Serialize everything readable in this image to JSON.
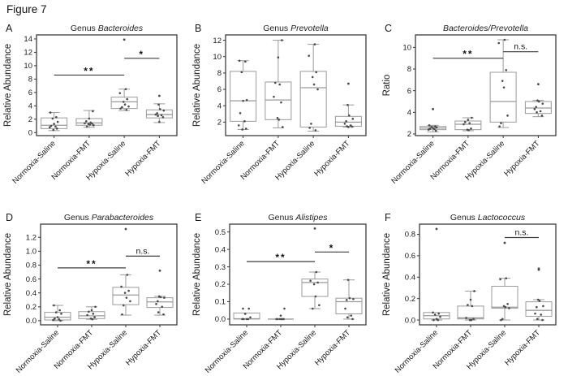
{
  "figure_title": "Figure 7",
  "style": {
    "panel_border_color": "#3d3d3d",
    "box_stroke_color": "#9b9b9b",
    "point_color": "#4a4a4a",
    "sig_color": "#3d3d3d",
    "text_color": "#1a1a1a"
  },
  "categories": [
    "Normoxia-Saline",
    "Normoxia-FMT",
    "Hypoxia-Saline",
    "Hypoxia-FMT"
  ],
  "chart_data": [
    {
      "type": "boxplot",
      "panel_label": "A",
      "title": {
        "prefix": "Genus ",
        "italic": "Bacteroides"
      },
      "ylabel": "Relative Abundance",
      "ylim": [
        -0.45,
        14.6
      ],
      "yticks": [
        0,
        2,
        4,
        6,
        8,
        10,
        12,
        14
      ],
      "ytick_labels": [
        "0",
        "2",
        "4",
        "6",
        "8",
        "10",
        "12",
        "14"
      ],
      "grid": false,
      "legend": "none",
      "boxes": [
        {
          "category": "Normoxia-Saline",
          "whisker_low": 0.3,
          "q1": 0.6,
          "median": 1.1,
          "q3": 2.2,
          "whisker_high": 3.0,
          "outliers": [],
          "points": [
            3.0,
            2.3,
            2.1,
            1.6,
            1.3,
            1.0,
            0.9,
            0.8,
            0.6,
            0.4
          ]
        },
        {
          "category": "Normoxia-FMT",
          "whisker_low": 0.8,
          "q1": 1.1,
          "median": 1.45,
          "q3": 2.1,
          "whisker_high": 3.3,
          "outliers": [],
          "points": [
            3.2,
            2.1,
            1.7,
            1.5,
            1.4,
            1.35,
            1.3,
            1.2,
            1.1,
            0.9
          ]
        },
        {
          "category": "Hypoxia-Saline",
          "whisker_low": 3.3,
          "q1": 3.6,
          "median": 4.6,
          "q3": 5.3,
          "whisker_high": 6.5,
          "outliers": [
            13.9
          ],
          "points": [
            6.5,
            5.9,
            5.0,
            4.6,
            4.2,
            3.9,
            3.8,
            3.6,
            3.4
          ]
        },
        {
          "category": "Hypoxia-FMT",
          "whisker_low": 1.5,
          "q1": 2.2,
          "median": 2.7,
          "q3": 3.4,
          "whisker_high": 4.3,
          "outliers": [
            5.5
          ],
          "points": [
            4.2,
            3.5,
            3.3,
            2.9,
            2.7,
            2.6,
            2.5,
            2.3,
            1.6
          ]
        }
      ],
      "significance": [
        {
          "from": 0,
          "to": 2,
          "y": 8.6,
          "label": "**"
        },
        {
          "from": 2,
          "to": 3,
          "y": 11.1,
          "label": "*"
        }
      ]
    },
    {
      "type": "boxplot",
      "panel_label": "B",
      "title": {
        "prefix": "Genus ",
        "italic": "Prevotella"
      },
      "ylabel": "Relative Abundance",
      "ylim": [
        0.35,
        12.65
      ],
      "yticks": [
        2,
        4,
        6,
        8,
        10,
        12
      ],
      "ytick_labels": [
        "2",
        "4",
        "6",
        "8",
        "10",
        "12"
      ],
      "grid": false,
      "legend": "none",
      "boxes": [
        {
          "category": "Normoxia-Saline",
          "whisker_low": 1.1,
          "q1": 2.1,
          "median": 4.6,
          "q3": 8.2,
          "whisker_high": 9.5,
          "outliers": [],
          "points": [
            9.5,
            9.4,
            8.1,
            4.7,
            4.6,
            3.1,
            2.1,
            1.6,
            1.2,
            1.1
          ]
        },
        {
          "category": "Normoxia-FMT",
          "whisker_low": 1.3,
          "q1": 2.3,
          "median": 4.7,
          "q3": 6.9,
          "whisker_high": 12.0,
          "outliers": [],
          "points": [
            12.0,
            9.9,
            6.8,
            6.6,
            5.1,
            4.4,
            2.5,
            2.3,
            1.4
          ]
        },
        {
          "category": "Hypoxia-Saline",
          "whisker_low": 0.9,
          "q1": 1.4,
          "median": 6.2,
          "q3": 8.2,
          "whisker_high": 11.5,
          "outliers": [],
          "points": [
            11.5,
            10.1,
            8.1,
            7.5,
            6.6,
            6.0,
            1.8,
            1.3,
            1.0
          ]
        },
        {
          "category": "Hypoxia-FMT",
          "whisker_low": 1.4,
          "q1": 1.5,
          "median": 2.0,
          "q3": 2.7,
          "whisker_high": 4.1,
          "outliers": [
            6.7
          ],
          "points": [
            4.1,
            2.8,
            2.4,
            2.1,
            1.8,
            1.6,
            1.5,
            1.45,
            1.4
          ]
        }
      ],
      "significance": []
    },
    {
      "type": "boxplot",
      "panel_label": "C",
      "title": {
        "prefix": "",
        "italic": "Bacteroides/Prevotella"
      },
      "ylabel": "Ratio",
      "ylim": [
        1.85,
        11.15
      ],
      "yticks": [
        2,
        4,
        6,
        8,
        10
      ],
      "ytick_labels": [
        "2",
        "4",
        "6",
        "8",
        "10"
      ],
      "grid": false,
      "legend": "none",
      "boxes": [
        {
          "category": "Normoxia-Saline",
          "whisker_low": 2.2,
          "q1": 2.4,
          "median": 2.55,
          "q3": 2.7,
          "whisker_high": 2.8,
          "outliers": [
            4.3
          ],
          "points": [
            2.8,
            2.7,
            2.65,
            2.6,
            2.55,
            2.5,
            2.45,
            2.4,
            2.3
          ]
        },
        {
          "category": "Normoxia-FMT",
          "whisker_low": 2.3,
          "q1": 2.4,
          "median": 2.9,
          "q3": 3.2,
          "whisker_high": 3.5,
          "outliers": [],
          "points": [
            3.5,
            3.3,
            3.1,
            3.0,
            2.9,
            2.5,
            2.4,
            2.35
          ]
        },
        {
          "category": "Hypoxia-Saline",
          "whisker_low": 2.6,
          "q1": 3.1,
          "median": 5.0,
          "q3": 7.7,
          "whisker_high": 10.7,
          "outliers": [],
          "points": [
            10.7,
            10.4,
            7.9,
            6.9,
            6.3,
            3.7,
            3.0,
            2.7
          ]
        },
        {
          "category": "Hypoxia-FMT",
          "whisker_low": 3.6,
          "q1": 3.9,
          "median": 4.4,
          "q3": 5.0,
          "whisker_high": 5.1,
          "outliers": [
            6.6
          ],
          "points": [
            5.1,
            5.0,
            4.8,
            4.5,
            4.3,
            4.1,
            4.0,
            3.7
          ]
        }
      ],
      "significance": [
        {
          "from": 0,
          "to": 2,
          "y": 9.0,
          "label": "**"
        },
        {
          "from": 2,
          "to": 3,
          "y": 9.6,
          "label": "n.s."
        }
      ]
    },
    {
      "type": "boxplot",
      "panel_label": "D",
      "title": {
        "prefix": "Genus ",
        "italic": "Parabacteroides"
      },
      "ylabel": "Relative Abundance",
      "ylim": [
        -0.06,
        1.39
      ],
      "yticks": [
        0.0,
        0.2,
        0.4,
        0.6,
        0.8,
        1.0,
        1.2
      ],
      "ytick_labels": [
        "0.0",
        "0.2",
        "0.4",
        "0.6",
        "0.8",
        "1.0",
        "1.2"
      ],
      "grid": false,
      "legend": "none",
      "boxes": [
        {
          "category": "Normoxia-Saline",
          "whisker_low": 0.0,
          "q1": 0.01,
          "median": 0.05,
          "q3": 0.12,
          "whisker_high": 0.22,
          "outliers": [],
          "points": [
            0.22,
            0.15,
            0.12,
            0.1,
            0.05,
            0.03,
            0.02,
            0.01,
            0.0
          ]
        },
        {
          "category": "Normoxia-FMT",
          "whisker_low": 0.02,
          "q1": 0.03,
          "median": 0.07,
          "q3": 0.13,
          "whisker_high": 0.2,
          "outliers": [],
          "points": [
            0.2,
            0.15,
            0.13,
            0.1,
            0.08,
            0.05,
            0.03,
            0.02
          ]
        },
        {
          "category": "Hypoxia-Saline",
          "whisker_low": 0.08,
          "q1": 0.23,
          "median": 0.37,
          "q3": 0.48,
          "whisker_high": 0.66,
          "outliers": [
            1.32
          ],
          "points": [
            0.66,
            0.49,
            0.43,
            0.4,
            0.33,
            0.28,
            0.22,
            0.09
          ]
        },
        {
          "category": "Hypoxia-FMT",
          "whisker_low": 0.08,
          "q1": 0.19,
          "median": 0.27,
          "q3": 0.33,
          "whisker_high": 0.35,
          "outliers": [
            0.72
          ],
          "points": [
            0.35,
            0.34,
            0.33,
            0.28,
            0.24,
            0.2,
            0.12,
            0.09
          ]
        }
      ],
      "significance": [
        {
          "from": 0,
          "to": 2,
          "y": 0.76,
          "label": "**"
        },
        {
          "from": 2,
          "to": 3,
          "y": 0.93,
          "label": "n.s."
        }
      ]
    },
    {
      "type": "boxplot",
      "panel_label": "E",
      "title": {
        "prefix": "Genus ",
        "italic": "Alistipes"
      },
      "ylabel": "Relative Abundance",
      "ylim": [
        -0.033,
        0.545
      ],
      "yticks": [
        0.0,
        0.1,
        0.2,
        0.3,
        0.4,
        0.5
      ],
      "ytick_labels": [
        "0.0",
        "0.1",
        "0.2",
        "0.3",
        "0.4",
        "0.5"
      ],
      "grid": false,
      "legend": "none",
      "boxes": [
        {
          "category": "Normoxia-Saline",
          "whisker_low": 0.0,
          "q1": 0.0,
          "median": 0.002,
          "q3": 0.035,
          "whisker_high": 0.035,
          "outliers": [],
          "points": [
            0.06,
            0.06,
            0.03,
            0.01,
            0.0,
            0.0,
            0.0,
            0.0
          ]
        },
        {
          "category": "Normoxia-FMT",
          "whisker_low": 0.0,
          "q1": 0.0,
          "median": 0.0,
          "q3": 0.0,
          "whisker_high": 0.0,
          "outliers": [],
          "points": [
            0.06,
            0.02,
            0.0,
            0.0,
            0.0,
            0.0,
            0.0,
            0.0
          ]
        },
        {
          "category": "Hypoxia-Saline",
          "whisker_low": 0.06,
          "q1": 0.13,
          "median": 0.21,
          "q3": 0.23,
          "whisker_high": 0.27,
          "outliers": [
            0.52
          ],
          "points": [
            0.27,
            0.22,
            0.21,
            0.2,
            0.13,
            0.08,
            0.06
          ]
        },
        {
          "category": "Hypoxia-FMT",
          "whisker_low": 0.0,
          "q1": 0.03,
          "median": 0.1,
          "q3": 0.12,
          "whisker_high": 0.225,
          "outliers": [],
          "points": [
            0.225,
            0.12,
            0.115,
            0.11,
            0.06,
            0.02,
            0.01,
            0.0
          ]
        }
      ],
      "significance": [
        {
          "from": 0,
          "to": 2,
          "y": 0.33,
          "label": "**"
        },
        {
          "from": 2,
          "to": 3,
          "y": 0.385,
          "label": "*"
        }
      ]
    },
    {
      "type": "boxplot",
      "panel_label": "F",
      "title": {
        "prefix": "Genus ",
        "italic": "Lactococcus"
      },
      "ylabel": "Relative Abundance",
      "ylim": [
        -0.045,
        0.895
      ],
      "yticks": [
        0.0,
        0.2,
        0.4,
        0.6,
        0.8
      ],
      "ytick_labels": [
        "0.0",
        "0.2",
        "0.4",
        "0.6",
        "0.8"
      ],
      "grid": false,
      "legend": "none",
      "boxes": [
        {
          "category": "Normoxia-Saline",
          "whisker_low": 0.0,
          "q1": 0.01,
          "median": 0.04,
          "q3": 0.07,
          "whisker_high": 0.07,
          "outliers": [
            0.85
          ],
          "points": [
            0.07,
            0.06,
            0.05,
            0.03,
            0.01,
            0.0,
            0.0
          ]
        },
        {
          "category": "Normoxia-FMT",
          "whisker_low": 0.0,
          "q1": 0.01,
          "median": 0.02,
          "q3": 0.13,
          "whisker_high": 0.27,
          "outliers": [],
          "points": [
            0.27,
            0.19,
            0.14,
            0.13,
            0.02,
            0.01,
            0.0,
            0.0
          ]
        },
        {
          "category": "Hypoxia-Saline",
          "whisker_low": 0.0,
          "q1": 0.11,
          "median": 0.12,
          "q3": 0.315,
          "whisker_high": 0.39,
          "outliers": [
            0.72
          ],
          "points": [
            0.39,
            0.38,
            0.15,
            0.13,
            0.12,
            0.11,
            0.01,
            0.0
          ]
        },
        {
          "category": "Hypoxia-FMT",
          "whisker_low": 0.0,
          "q1": 0.035,
          "median": 0.09,
          "q3": 0.17,
          "whisker_high": 0.19,
          "outliers": [
            0.47,
            0.48
          ],
          "points": [
            0.19,
            0.18,
            0.13,
            0.12,
            0.06,
            0.05,
            0.01,
            0.0
          ]
        }
      ],
      "significance": [
        {
          "from": 2,
          "to": 3,
          "y": 0.77,
          "label": "n.s."
        }
      ]
    }
  ]
}
